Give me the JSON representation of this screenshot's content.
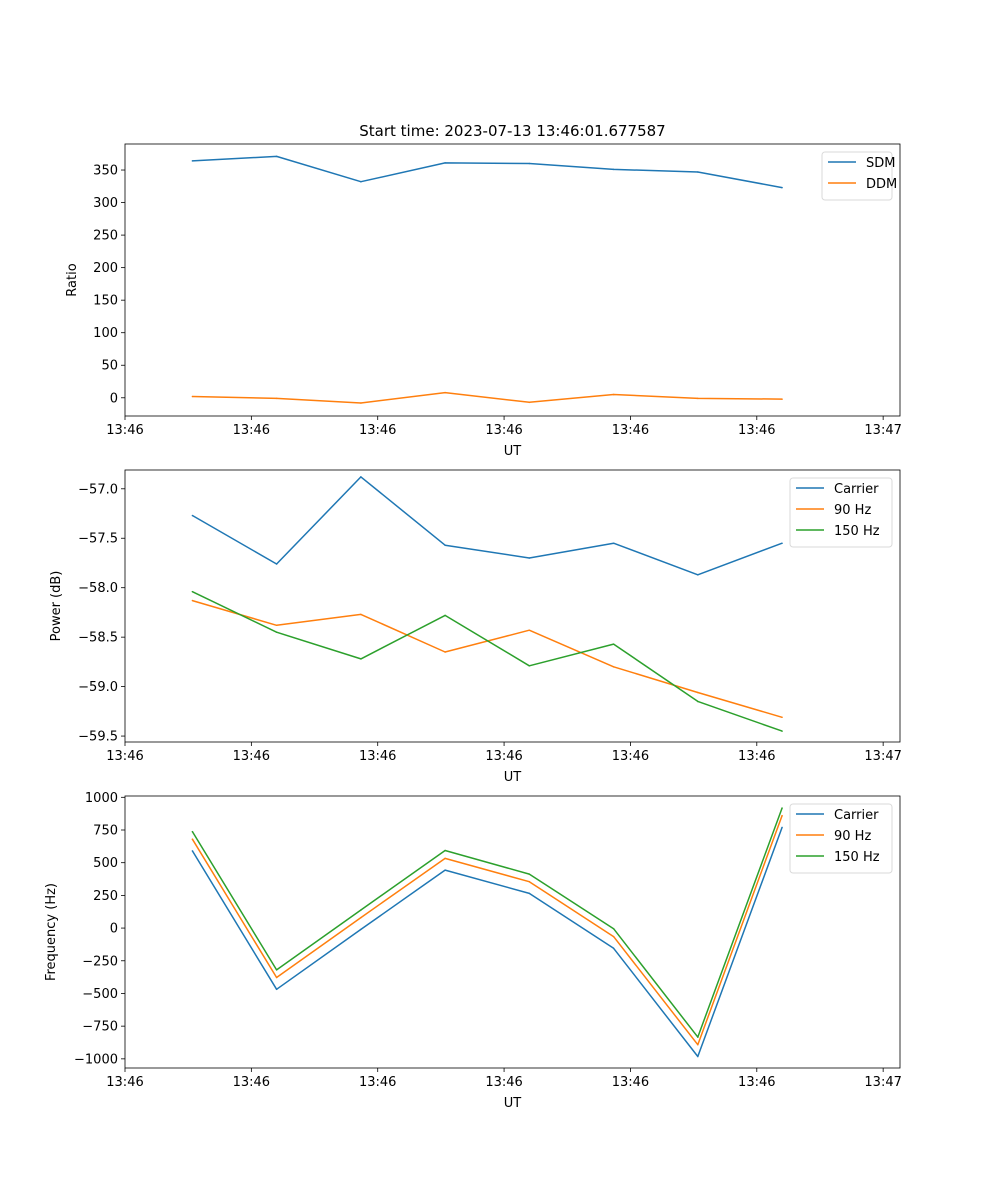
{
  "chart_data": [
    {
      "type": "line",
      "title": "Start time: 2023-07-13 13:46:01.677587",
      "xlabel": "UT",
      "ylabel": "Ratio",
      "x": [
        1,
        2,
        3,
        4,
        5,
        6,
        7,
        8
      ],
      "xlim": [
        0.2,
        9.4
      ],
      "xticks": [
        {
          "value": 0.2,
          "label": "13:46"
        },
        {
          "value": 1.7,
          "label": "13:46"
        },
        {
          "value": 3.2,
          "label": "13:46"
        },
        {
          "value": 4.7,
          "label": "13:46"
        },
        {
          "value": 6.2,
          "label": "13:46"
        },
        {
          "value": 7.7,
          "label": "13:46"
        },
        {
          "value": 9.2,
          "label": "13:47"
        }
      ],
      "ylim": [
        -28,
        390
      ],
      "yticks": [
        0,
        50,
        100,
        150,
        200,
        250,
        300,
        350
      ],
      "ytick_labels": [
        "0",
        "50",
        "100",
        "150",
        "200",
        "250",
        "300",
        "350"
      ],
      "legend_position": "top-right",
      "series": [
        {
          "name": "SDM",
          "color": "#1f77b4",
          "values": [
            364,
            371,
            332,
            361,
            360,
            351,
            347,
            323
          ]
        },
        {
          "name": "DDM",
          "color": "#ff7f0e",
          "values": [
            2,
            -1,
            -8,
            8,
            -7,
            5,
            -1,
            -2
          ]
        }
      ]
    },
    {
      "type": "line",
      "title": "",
      "xlabel": "UT",
      "ylabel": "Power (dB)",
      "x": [
        1,
        2,
        3,
        4,
        5,
        6,
        7,
        8
      ],
      "xlim": [
        0.2,
        9.4
      ],
      "xticks": [
        {
          "value": 0.2,
          "label": "13:46"
        },
        {
          "value": 1.7,
          "label": "13:46"
        },
        {
          "value": 3.2,
          "label": "13:46"
        },
        {
          "value": 4.7,
          "label": "13:46"
        },
        {
          "value": 6.2,
          "label": "13:46"
        },
        {
          "value": 7.7,
          "label": "13:46"
        },
        {
          "value": 9.2,
          "label": "13:47"
        }
      ],
      "ylim": [
        -59.56,
        -56.81
      ],
      "yticks": [
        -59.5,
        -59.0,
        -58.5,
        -58.0,
        -57.5,
        -57.0
      ],
      "ytick_labels": [
        "−59.5",
        "−59.0",
        "−58.5",
        "−58.0",
        "−57.5",
        "−57.0"
      ],
      "legend_position": "top-right",
      "series": [
        {
          "name": "Carrier",
          "color": "#1f77b4",
          "values": [
            -57.27,
            -57.76,
            -56.88,
            -57.57,
            -57.7,
            -57.55,
            -57.87,
            -57.55
          ]
        },
        {
          "name": "90 Hz",
          "color": "#ff7f0e",
          "values": [
            -58.13,
            -58.38,
            -58.27,
            -58.65,
            -58.43,
            -58.8,
            -59.06,
            -59.31
          ]
        },
        {
          "name": "150 Hz",
          "color": "#2ca02c",
          "values": [
            -58.04,
            -58.45,
            -58.72,
            -58.28,
            -58.79,
            -58.57,
            -59.15,
            -59.45
          ]
        }
      ]
    },
    {
      "type": "line",
      "title": "",
      "xlabel": "UT",
      "ylabel": "Frequency (Hz)",
      "x": [
        1,
        2,
        3,
        4,
        5,
        6,
        7,
        8
      ],
      "xlim": [
        0.2,
        9.4
      ],
      "xticks": [
        {
          "value": 0.2,
          "label": "13:46"
        },
        {
          "value": 1.7,
          "label": "13:46"
        },
        {
          "value": 3.2,
          "label": "13:46"
        },
        {
          "value": 4.7,
          "label": "13:46"
        },
        {
          "value": 6.2,
          "label": "13:46"
        },
        {
          "value": 7.7,
          "label": "13:46"
        },
        {
          "value": 9.2,
          "label": "13:47"
        }
      ],
      "ylim": [
        -1070,
        1010
      ],
      "yticks": [
        -1000,
        -750,
        -500,
        -250,
        0,
        250,
        500,
        750,
        1000
      ],
      "ytick_labels": [
        "−1000",
        "−750",
        "−500",
        "−250",
        "0",
        "250",
        "500",
        "750",
        "1000"
      ],
      "legend_position": "top-right",
      "series": [
        {
          "name": "Carrier",
          "color": "#1f77b4",
          "values": [
            590,
            -468,
            -10,
            443,
            265,
            -155,
            -982,
            770
          ]
        },
        {
          "name": "90 Hz",
          "color": "#ff7f0e",
          "values": [
            680,
            -378,
            80,
            533,
            355,
            -65,
            -892,
            860
          ]
        },
        {
          "name": "150 Hz",
          "color": "#2ca02c",
          "values": [
            738,
            -320,
            138,
            593,
            413,
            -5,
            -834,
            918
          ]
        }
      ]
    }
  ]
}
